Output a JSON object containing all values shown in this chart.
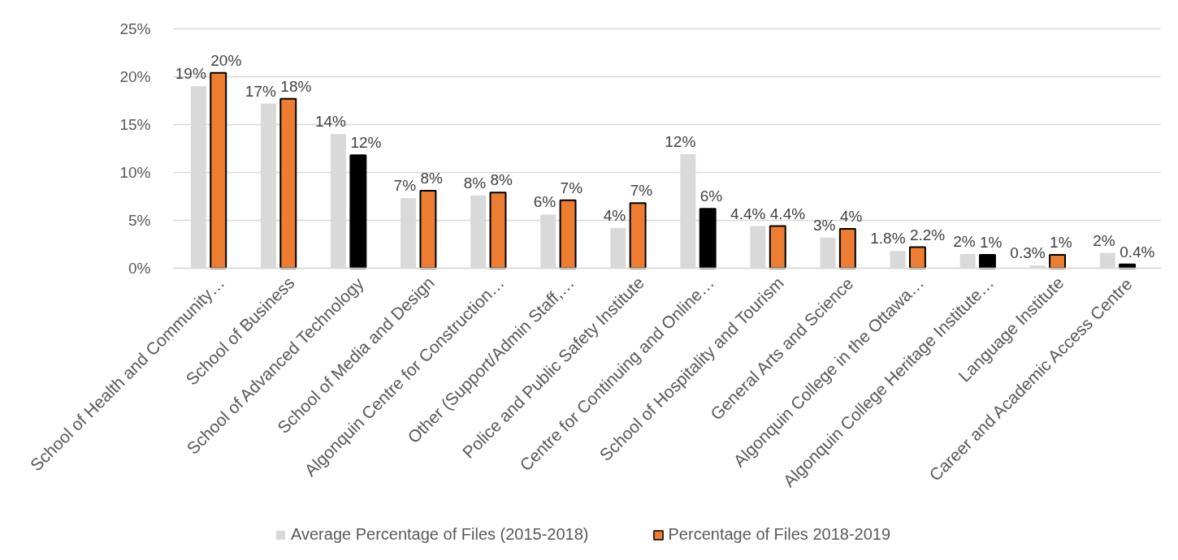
{
  "chart_data": {
    "type": "bar",
    "categories": [
      "School of Health and Community…",
      "School of Business",
      "School of Advanced Technology",
      "School of Media and Design",
      "Algonquin Centre for Construction…",
      "Other (Support/Admin Staff,…",
      "Police and Public Safety Institute",
      "Centre for Continuing and Online…",
      "School of Hospitality and Tourism",
      "General Arts and Science",
      "Algonquin College in the Ottawa…",
      "Algonquin College Heritage Institute…",
      "Language Institute",
      "Career and Academic Access Centre"
    ],
    "series": [
      {
        "name": "Average Percentage of Files (2015-2018)",
        "color": "#d9d9d9",
        "values": [
          19.0,
          17.2,
          14.0,
          7.3,
          7.6,
          5.6,
          4.2,
          11.9,
          4.4,
          3.2,
          1.8,
          1.5,
          0.3,
          1.6
        ],
        "value_labels": [
          "19%",
          "17%",
          "14%",
          "7%",
          "8%",
          "6%",
          "4%",
          "12%",
          "4.4%",
          "3%",
          "1.8%",
          "2%",
          "0.3%",
          "2%"
        ]
      },
      {
        "name": "Percentage of Files 2018-2019",
        "color": "#ed7d31",
        "colors": [
          "#ed7d31",
          "#ed7d31",
          "#000000",
          "#ed7d31",
          "#ed7d31",
          "#ed7d31",
          "#ed7d31",
          "#000000",
          "#ed7d31",
          "#ed7d31",
          "#ed7d31",
          "#000000",
          "#ed7d31",
          "#000000"
        ],
        "values": [
          20.4,
          17.7,
          11.8,
          8.1,
          7.9,
          7.1,
          6.8,
          6.2,
          4.4,
          4.1,
          2.2,
          1.4,
          1.4,
          0.4
        ],
        "value_labels": [
          "20%",
          "18%",
          "12%",
          "8%",
          "8%",
          "7%",
          "7%",
          "6%",
          "4.4%",
          "4%",
          "2.2%",
          "1%",
          "1%",
          "0.4%"
        ]
      }
    ],
    "ylim": [
      0,
      25
    ],
    "yticks": [
      {
        "value": 0,
        "label": "0%"
      },
      {
        "value": 5,
        "label": "5%"
      },
      {
        "value": 10,
        "label": "10%"
      },
      {
        "value": 15,
        "label": "15%"
      },
      {
        "value": 20,
        "label": "20%"
      },
      {
        "value": 25,
        "label": "25%"
      }
    ],
    "grid": "y",
    "legend": "bottom"
  }
}
